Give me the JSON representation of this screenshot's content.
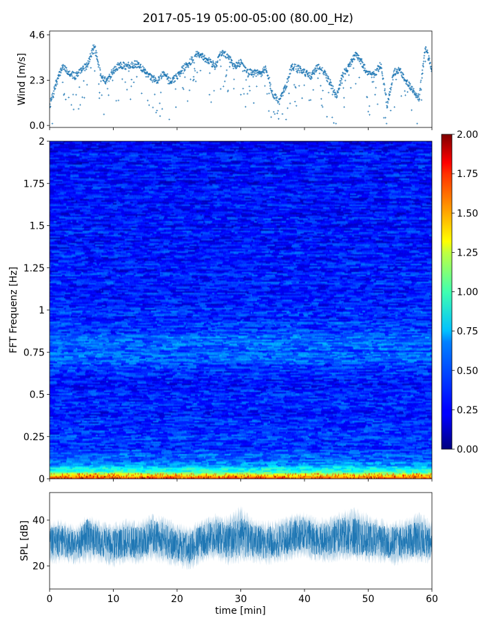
{
  "title": "2017-05-19 05:00-05:00 (80.00_Hz)",
  "colors": {
    "series": "#1f77b4",
    "axes": "#000000",
    "background": "#ffffff"
  },
  "chart_data": [
    {
      "type": "scatter",
      "name": "wind",
      "ylabel": "Wind [m/s]",
      "xlim": [
        0,
        60
      ],
      "ylim": [
        -0.1,
        4.8
      ],
      "yticks": [
        0.0,
        2.3,
        4.6
      ],
      "ytick_labels": [
        "0.0",
        "2.3",
        "4.6"
      ],
      "xticks": [
        0,
        10,
        20,
        30,
        40,
        50,
        60
      ],
      "marker": "+",
      "grid": false,
      "x": [
        0,
        1,
        2,
        3,
        4,
        5,
        6,
        7,
        8,
        9,
        10,
        11,
        12,
        13,
        14,
        15,
        16,
        17,
        18,
        19,
        20,
        21,
        22,
        23,
        24,
        25,
        26,
        27,
        28,
        29,
        30,
        31,
        32,
        33,
        34,
        35,
        36,
        37,
        38,
        39,
        40,
        41,
        42,
        43,
        44,
        45,
        46,
        47,
        48,
        49,
        50,
        51,
        52,
        53,
        54,
        55,
        56,
        57,
        58,
        59,
        60
      ],
      "y": [
        1.0,
        2.1,
        3.0,
        2.7,
        2.5,
        2.8,
        3.1,
        4.1,
        2.6,
        2.2,
        2.8,
        3.1,
        3.0,
        3.1,
        3.1,
        2.7,
        2.4,
        2.3,
        2.7,
        2.2,
        2.5,
        2.9,
        3.2,
        3.6,
        3.5,
        3.3,
        3.0,
        3.7,
        3.5,
        3.0,
        3.2,
        2.7,
        2.7,
        2.6,
        2.9,
        1.6,
        1.2,
        1.9,
        3.0,
        2.9,
        2.7,
        2.5,
        3.0,
        2.7,
        2.2,
        1.5,
        2.6,
        3.0,
        3.6,
        3.2,
        2.6,
        2.6,
        3.1,
        1.0,
        2.7,
        2.8,
        2.2,
        1.8,
        1.4,
        4.0,
        2.8
      ]
    },
    {
      "type": "heatmap",
      "name": "spectrogram",
      "ylabel": "FFT Frequenz [Hz]",
      "xlim": [
        0,
        60
      ],
      "ylim": [
        0,
        2
      ],
      "yticks": [
        0,
        0.25,
        0.5,
        0.75,
        1,
        1.25,
        1.5,
        1.75,
        2
      ],
      "ytick_labels": [
        "0",
        "0.25",
        "0.5",
        "0.75",
        "1",
        "1.25",
        "1.5",
        "1.75",
        "2"
      ],
      "xticks": [
        0,
        10,
        20,
        30,
        40,
        50,
        60
      ],
      "colormap": "jet",
      "colorbar": {
        "vmin": 0.0,
        "vmax": 2.0,
        "ticks": [
          0.0,
          0.25,
          0.5,
          0.75,
          1.0,
          1.25,
          1.5,
          1.75,
          2.0
        ],
        "tick_labels": [
          "0.00",
          "0.25",
          "0.50",
          "0.75",
          "1.00",
          "1.25",
          "1.50",
          "1.75",
          "2.00"
        ],
        "placement": "right"
      },
      "frequency_profile": {
        "frequencies": [
          0.0,
          0.02,
          0.05,
          0.1,
          0.2,
          0.4,
          0.6,
          0.75,
          0.82,
          0.9,
          1.0,
          1.25,
          1.5,
          1.75,
          2.0
        ],
        "mean_values": [
          1.6,
          1.2,
          0.75,
          0.45,
          0.33,
          0.3,
          0.3,
          0.42,
          0.45,
          0.32,
          0.3,
          0.28,
          0.27,
          0.26,
          0.25
        ]
      }
    },
    {
      "type": "line",
      "name": "spl",
      "ylabel": "SPL [dB]",
      "xlabel": "time [min]",
      "xlim": [
        0,
        60
      ],
      "ylim": [
        10,
        52
      ],
      "yticks": [
        20,
        40
      ],
      "ytick_labels": [
        "20",
        "40"
      ],
      "xticks": [
        0,
        10,
        20,
        30,
        40,
        50,
        60
      ],
      "xtick_labels": [
        "0",
        "10",
        "20",
        "30",
        "40",
        "50",
        "60"
      ],
      "grid": false,
      "x": [
        0,
        2,
        4,
        6,
        8,
        10,
        12,
        14,
        16,
        18,
        20,
        22,
        24,
        26,
        28,
        30,
        32,
        34,
        36,
        38,
        40,
        42,
        44,
        46,
        48,
        50,
        52,
        54,
        56,
        58,
        60
      ],
      "mean": [
        30,
        31,
        29,
        33,
        31,
        29,
        31,
        30,
        33,
        31,
        29,
        28,
        31,
        33,
        31,
        33,
        31,
        30,
        31,
        33,
        34,
        31,
        32,
        33,
        33,
        32,
        31,
        30,
        31,
        32,
        30
      ],
      "upper": [
        40,
        41,
        38,
        43,
        40,
        39,
        41,
        40,
        43,
        42,
        39,
        38,
        41,
        43,
        42,
        47,
        41,
        40,
        41,
        43,
        44,
        41,
        42,
        45,
        46,
        43,
        41,
        40,
        41,
        44,
        40
      ],
      "lower": [
        20,
        21,
        20,
        21,
        21,
        19,
        21,
        20,
        22,
        20,
        19,
        18,
        21,
        22,
        20,
        21,
        21,
        20,
        21,
        22,
        23,
        21,
        21,
        22,
        22,
        21,
        21,
        20,
        21,
        21,
        21
      ]
    }
  ]
}
